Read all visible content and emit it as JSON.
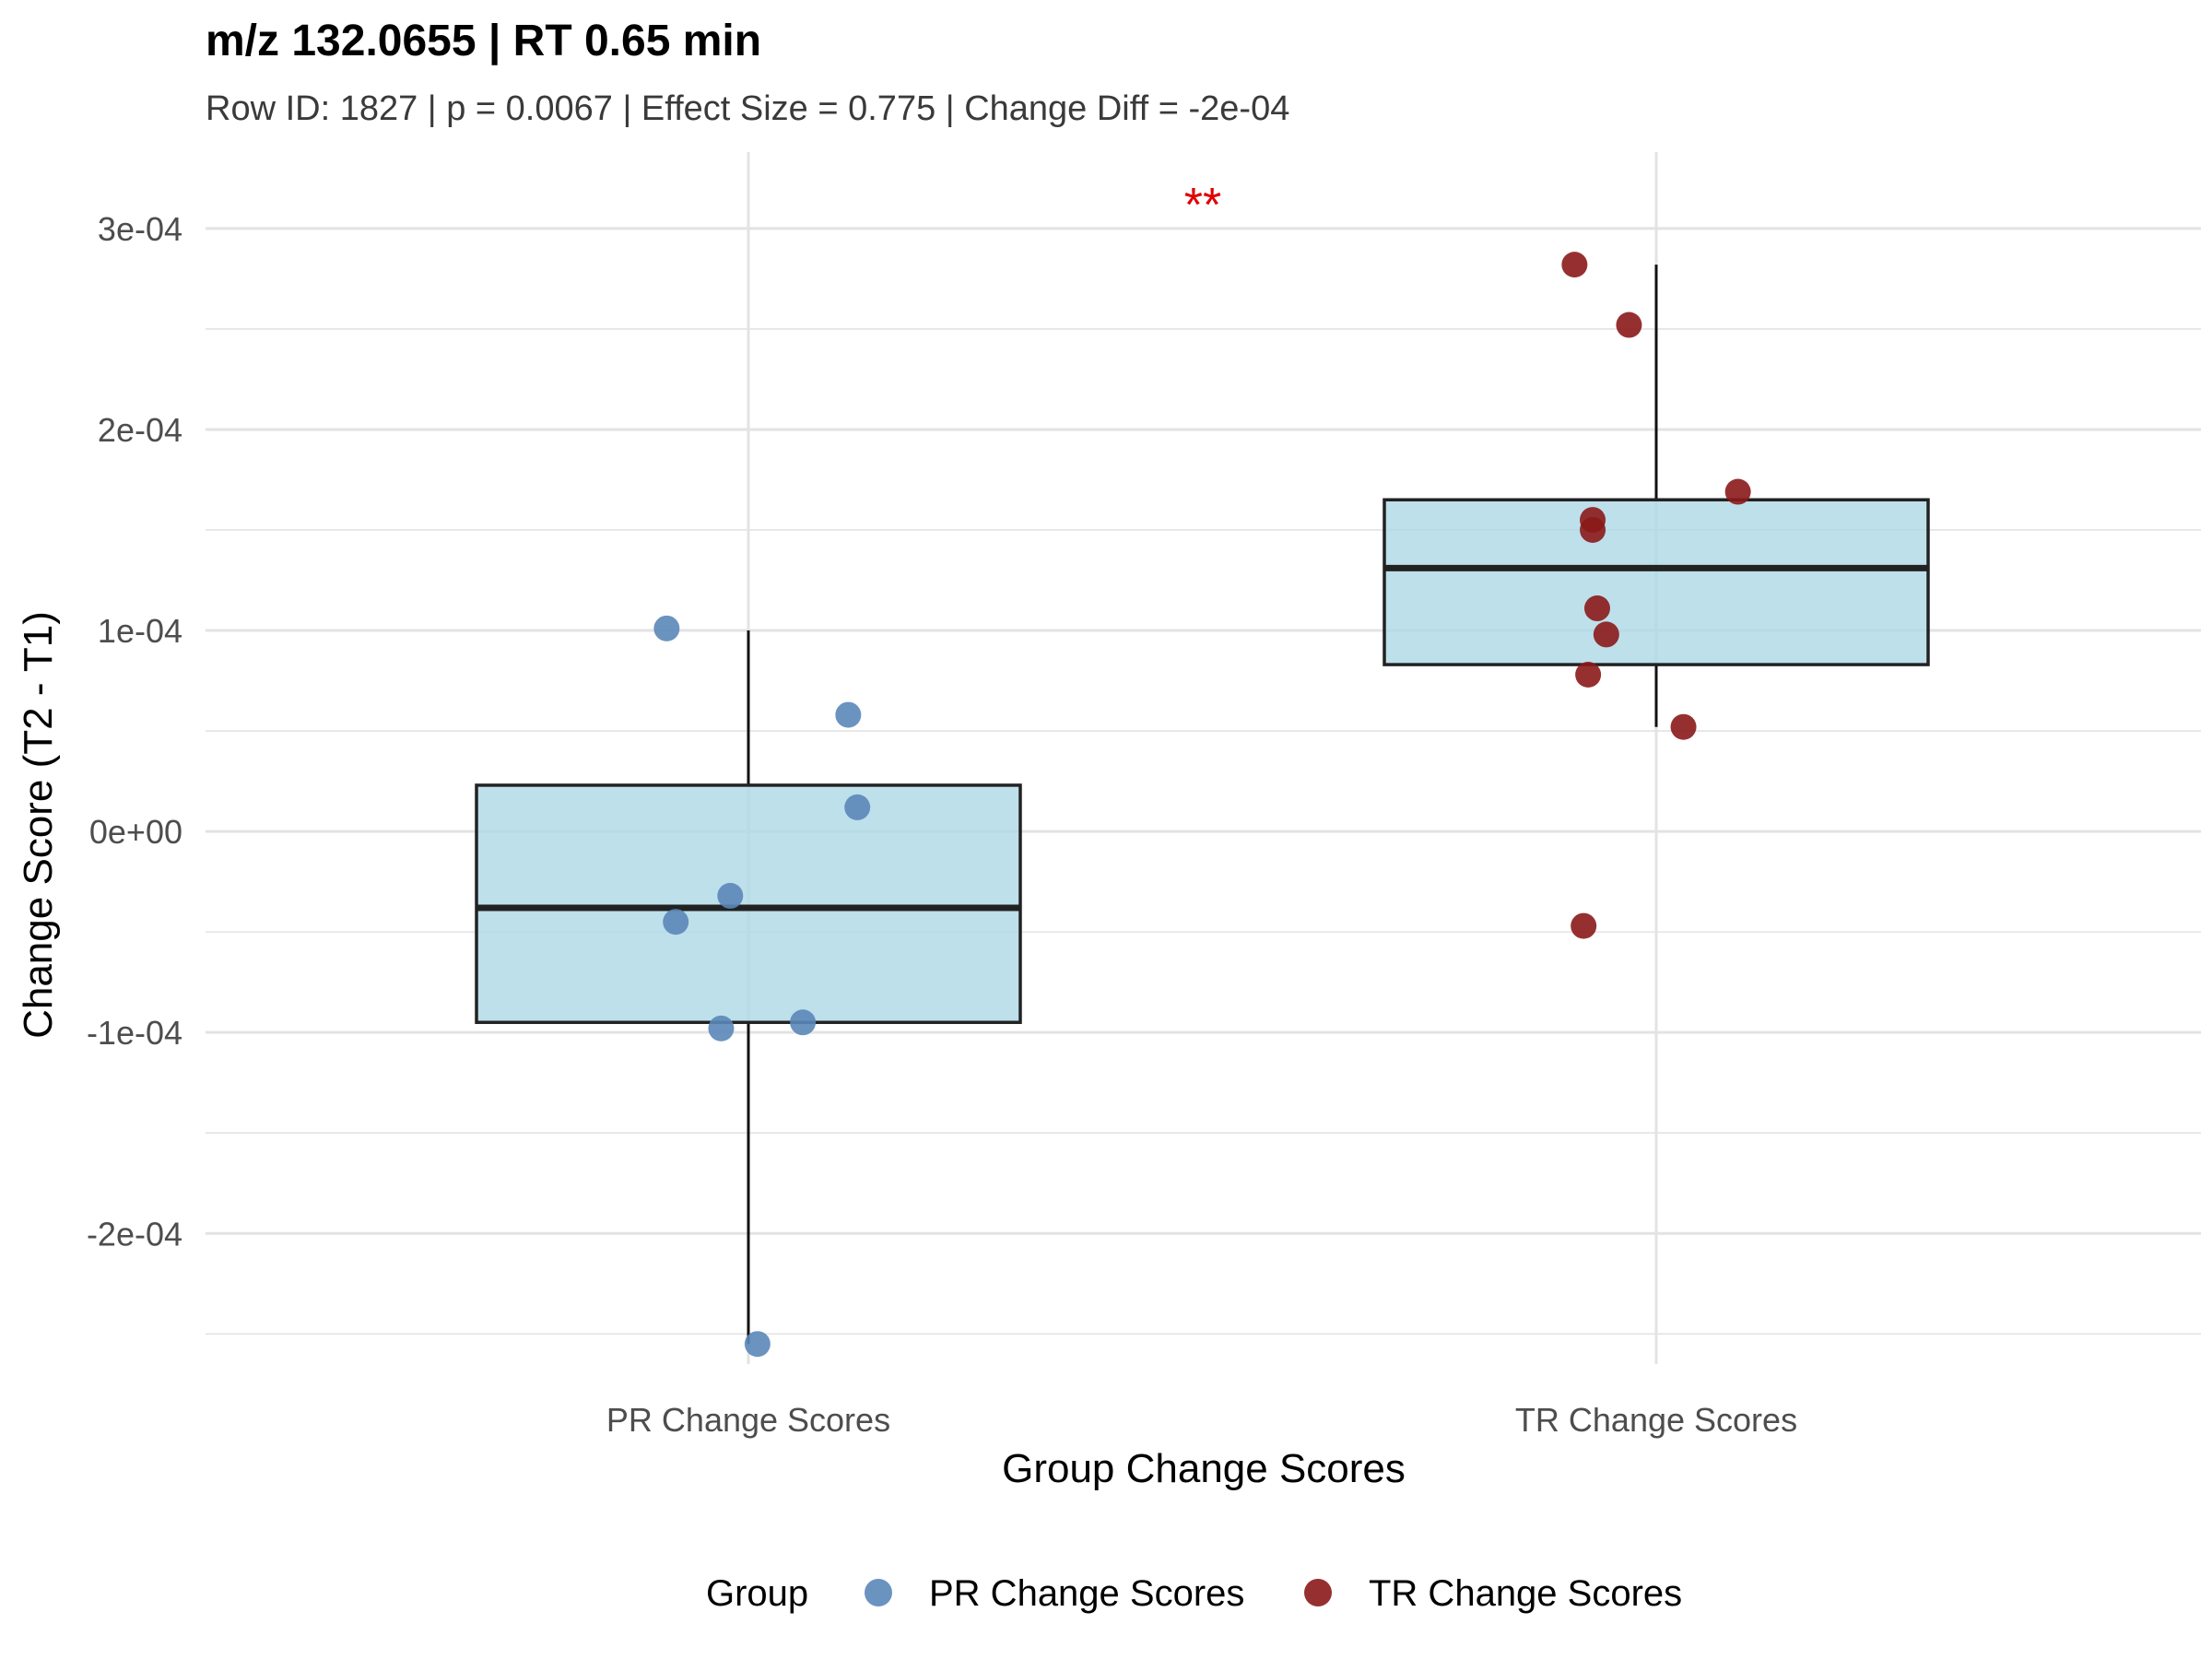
{
  "chart_data": {
    "type": "box",
    "title": "m/z 132.0655 | RT 0.65 min",
    "subtitle": "Row ID: 1827 | p = 0.0067 | Effect Size = 0.775 | Change Diff = -2e-04",
    "xlabel": "Group Change Scores",
    "ylabel": "Change Score (T2 - T1)",
    "categories": [
      "PR Change Scores",
      "TR Change Scores"
    ],
    "ylim": [
      -0.000265,
      0.000338
    ],
    "yticks": [
      -0.0002,
      -0.0001,
      0,
      0.0001,
      0.0002,
      0.0003
    ],
    "ytick_labels": [
      "-2e-04",
      "-1e-04",
      "0e+00",
      "1e-04",
      "2e-04",
      "3e-04"
    ],
    "grid": true,
    "significance": "**",
    "boxes": [
      {
        "category": "PR Change Scores",
        "q1": -9.5e-05,
        "median": -3.8e-05,
        "q3": 2.3e-05,
        "whisker_low": -0.000255,
        "whisker_high": 0.0001
      },
      {
        "category": "TR Change Scores",
        "q1": 8.3e-05,
        "median": 0.000131,
        "q3": 0.000165,
        "whisker_low": 5.2e-05,
        "whisker_high": 0.000282
      }
    ],
    "series": [
      {
        "name": "PR Change Scores",
        "color": "#5b87b9",
        "points": [
          {
            "x": -0.09,
            "y": 0.000101
          },
          {
            "x": 0.11,
            "y": 5.8e-05
          },
          {
            "x": 0.12,
            "y": 1.2e-05
          },
          {
            "x": -0.02,
            "y": -3.2e-05
          },
          {
            "x": -0.08,
            "y": -4.5e-05
          },
          {
            "x": -0.03,
            "y": -9.8e-05
          },
          {
            "x": 0.06,
            "y": -9.5e-05
          },
          {
            "x": 0.01,
            "y": -0.000255
          }
        ]
      },
      {
        "name": "TR Change Scores",
        "color": "#8b1a1a",
        "points": [
          {
            "x": -0.09,
            "y": 0.000282
          },
          {
            "x": -0.03,
            "y": 0.000252
          },
          {
            "x": 0.09,
            "y": 0.000169
          },
          {
            "x": -0.07,
            "y": 0.000155
          },
          {
            "x": -0.07,
            "y": 0.00015
          },
          {
            "x": -0.065,
            "y": 0.000111
          },
          {
            "x": -0.055,
            "y": 9.8e-05
          },
          {
            "x": -0.075,
            "y": 7.8e-05
          },
          {
            "x": 0.03,
            "y": 5.2e-05
          },
          {
            "x": -0.08,
            "y": -4.7e-05
          }
        ]
      }
    ],
    "legend": {
      "title": "Group",
      "placement": "bottom",
      "items": [
        {
          "label": "PR Change Scores",
          "color": "#5b87b9"
        },
        {
          "label": "TR Change Scores",
          "color": "#8b1a1a"
        }
      ]
    },
    "colors": {
      "box_fill": "#add8e6",
      "box_stroke": "#222222",
      "grid": "#e3e3e3",
      "significance": "#e00000"
    }
  }
}
